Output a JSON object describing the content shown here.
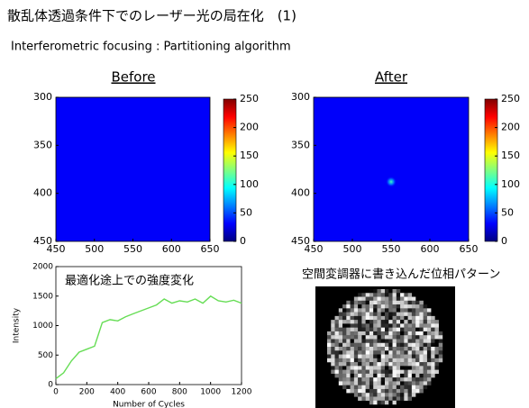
{
  "slide": {
    "title": "散乱体透過条件下でのレーザー光の局在化　(1)",
    "subtitle": "Interferometric focusing : Partitioning algorithm"
  },
  "image": {
    "title": "空間変調器に書き込んだ位相パターン"
  },
  "chart_data": [
    {
      "type": "heatmap",
      "title": "Before",
      "xlim": [
        450,
        650
      ],
      "xticks": [
        450,
        500,
        550,
        600,
        650
      ],
      "ylim": [
        450,
        300
      ],
      "yticks": [
        300,
        350,
        400,
        450
      ],
      "clim": [
        0,
        250
      ],
      "cticks": [
        0,
        50,
        100,
        150,
        200,
        250
      ],
      "colormap": "jet",
      "background": 30,
      "peaks": []
    },
    {
      "type": "heatmap",
      "title": "After",
      "xlim": [
        450,
        650
      ],
      "xticks": [
        450,
        500,
        550,
        600,
        650
      ],
      "ylim": [
        450,
        300
      ],
      "yticks": [
        300,
        350,
        400,
        450
      ],
      "clim": [
        0,
        250
      ],
      "cticks": [
        0,
        50,
        100,
        150,
        200,
        250
      ],
      "colormap": "jet",
      "background": 30,
      "peaks": [
        {
          "x": 550,
          "y": 388,
          "value": 110
        }
      ]
    },
    {
      "type": "line",
      "annotation": "最適化途上での強度変化",
      "xlabel": "Number of Cycles",
      "ylabel": "Intensity",
      "color": "#66dd55",
      "xlim": [
        0,
        1200
      ],
      "xticks": [
        0,
        200,
        400,
        600,
        800,
        1000,
        1200
      ],
      "ylim": [
        0,
        2000
      ],
      "yticks": [
        0,
        500,
        1000,
        1500,
        2000
      ],
      "x": [
        0,
        50,
        100,
        150,
        200,
        250,
        300,
        350,
        400,
        450,
        500,
        550,
        600,
        650,
        700,
        750,
        800,
        850,
        900,
        950,
        1000,
        1050,
        1100,
        1150,
        1200
      ],
      "values": [
        100,
        200,
        400,
        550,
        600,
        650,
        1050,
        1100,
        1080,
        1150,
        1200,
        1250,
        1300,
        1350,
        1450,
        1380,
        1420,
        1400,
        1450,
        1380,
        1500,
        1420,
        1400,
        1430,
        1380
      ]
    }
  ]
}
